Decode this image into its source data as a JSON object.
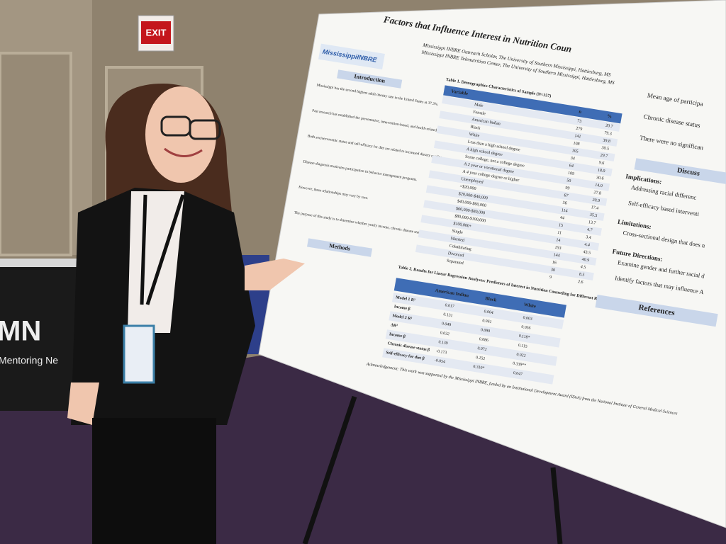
{
  "exit_sign": "EXIT",
  "banner": {
    "letters": "MN",
    "text": "Mentoring Ne"
  },
  "poster": {
    "title": "Factors that Influence Interest in Nutrition Coun",
    "logo": "MississippiINBRE",
    "affiliations": [
      "Mississippi INBRE Outreach Scholar, The University of Southern Mississippi, Hattiesburg, MS",
      "Mississippi INBRE Telenutrition Center, The University of Southern Mississippi, Hattiesburg, MS"
    ],
    "introduction": "Introduction",
    "methods": "Methods",
    "intro_bullets": [
      "Mississippi has the second highest adult obesity rate in the United States at 37.3%.",
      "Past research has established the preventative, intervention-based, and health-related benefits of nutrition counseling.",
      "Both socioeconomic status and self-efficacy for diet are related to increased dietary quality.",
      "Disease diagnosis motivates participation in behavior management programs.",
      "However, these relationships may vary by race.",
      "The purpose of this study is to determine whether yearly income, chronic disease status, and self-efficacy for diet predict interest in nutrition counseling."
    ],
    "table1": {
      "title": "Table 1. Demographics Characteristics of Sample (N=357)",
      "header": [
        "Variable",
        "n",
        "%"
      ],
      "rows": [
        [
          "Male",
          "73",
          "20.7"
        ],
        [
          "Female",
          "279",
          "79.3"
        ],
        [
          "American Indian",
          "141",
          "39.8"
        ],
        [
          "Black",
          "108",
          "30.5"
        ],
        [
          "White",
          "105",
          "29.7"
        ],
        [
          "Less than a high school degree",
          "34",
          "9.6"
        ],
        [
          "A high school degree",
          "64",
          "18.0"
        ],
        [
          "Some college, not a college degree",
          "109",
          "30.6"
        ],
        [
          "A 2 year or vocational degree",
          "50",
          "14.0"
        ],
        [
          "A 4 year college degree or higher",
          "99",
          "27.8"
        ],
        [
          "Unemployed",
          "67",
          "20.9"
        ],
        [
          ">$20,000",
          "56",
          "17.4"
        ],
        [
          "$20,000-$40,000",
          "114",
          "35.5"
        ],
        [
          "$40,000-$60,000",
          "44",
          "13.7"
        ],
        [
          "$60,000-$80,000",
          "15",
          "4.7"
        ],
        [
          "$80,000-$100,000",
          "11",
          "3.4"
        ],
        [
          "$100,000+",
          "14",
          "4.4"
        ],
        [
          "Single",
          "153",
          "43.5"
        ],
        [
          "Married",
          "144",
          "40.9"
        ],
        [
          "Cohabitating",
          "16",
          "4.5"
        ],
        [
          "Divorced",
          "30",
          "8.5"
        ],
        [
          "Separated",
          "9",
          "2.6"
        ]
      ]
    },
    "table2": {
      "title": "Table 2. Results for Linear Regression Analyses: Predictors of Interest in Nutrition Counseling for Different Races",
      "header": [
        "American Indian",
        "Black",
        "White"
      ],
      "rows": [
        [
          "Model 1 R²",
          "0.017",
          "0.004",
          "0.003"
        ],
        [
          "Income β",
          "0.131",
          "0.061",
          "0.056"
        ],
        [
          "Model 2 R²",
          "0.049",
          "0.090",
          "0.118*"
        ],
        [
          "ΔR²",
          "0.032",
          "0.086",
          "0.115"
        ],
        [
          "Income β",
          "0.139",
          "0.072",
          "0.022"
        ],
        [
          "Chronic disease status β",
          "-0.173",
          "0.152",
          "0.339**"
        ],
        [
          "Self-efficacy for diet β",
          "-0.054",
          "0.310*",
          "0.047"
        ]
      ]
    },
    "right_bullets": [
      "Mean age of participa",
      "Chronic disease status",
      "There were no significan"
    ],
    "discussion": "Discuss",
    "implications": "Implications:",
    "implication_bullets": [
      "Addressing racial differenc",
      "Self-efficacy based interventi"
    ],
    "limitations": "Limitations:",
    "limitation_bullets": [
      "Cross-sectional design that does n"
    ],
    "future": "Future Directions:",
    "future_bullets": [
      "Examine gender and further racial d",
      "Identify factors that may influence A"
    ],
    "references": "References",
    "acknowledgement": "Acknowledgement: This work was supported by the Mississippi INBRE, funded by an Institutional Development Award (IDeA) from the National Institute of General Medical Sciences"
  }
}
